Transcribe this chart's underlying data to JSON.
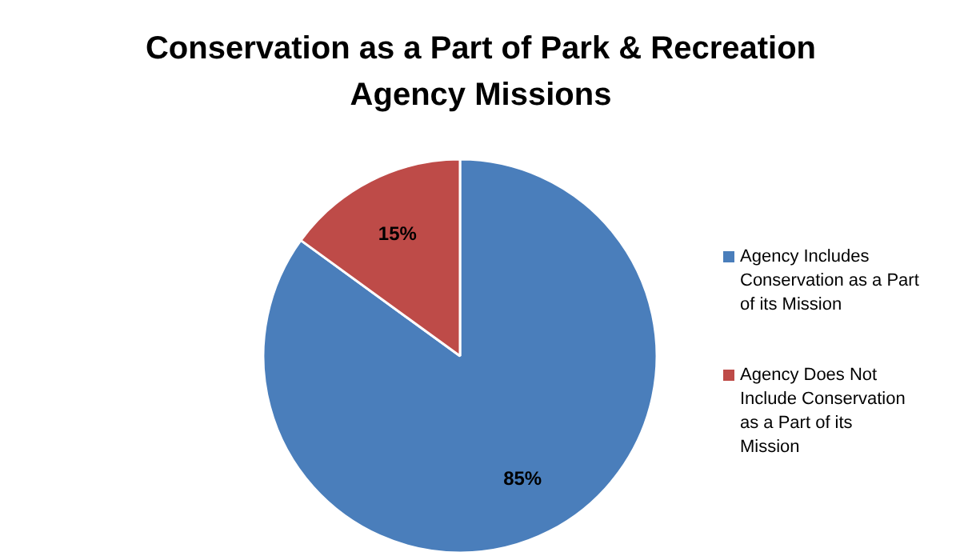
{
  "chart_data": {
    "type": "pie",
    "title": "Conservation as a Part of Park & Recreation Agency Missions",
    "categories": [
      "Agency Includes Conservation as a Part of its Mission",
      "Agency Does Not Include Conservation as a Part of its Mission"
    ],
    "values": [
      85,
      15
    ],
    "colors": [
      "#4a7ebb",
      "#be4b48"
    ],
    "value_labels": [
      "85%",
      "15%"
    ],
    "legend": "right"
  }
}
